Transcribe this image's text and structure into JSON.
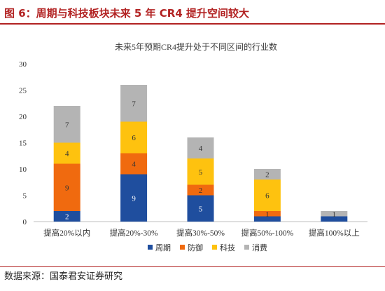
{
  "figure": {
    "title": "图 6：周期与科技板块未来 5 年 CR4 提升空间较大",
    "source": "数据来源：国泰君安证券研究"
  },
  "colors": {
    "accent": "#b22222",
    "series": [
      "#1f4e9e",
      "#f06a0f",
      "#fec20f",
      "#b4b4b4"
    ]
  },
  "chart_data": {
    "type": "bar",
    "stacked": true,
    "title": "未来5年预期CR4提升处于不同区间的行业数",
    "categories": [
      "提高20%以内",
      "提高20%-30%",
      "提高30%-50%",
      "提高50%-100%",
      "提高100%以上"
    ],
    "series": [
      {
        "name": "周期",
        "values": [
          2,
          9,
          5,
          1,
          1
        ]
      },
      {
        "name": "防御",
        "values": [
          9,
          4,
          2,
          1,
          0
        ]
      },
      {
        "name": "科技",
        "values": [
          4,
          6,
          5,
          6,
          0
        ]
      },
      {
        "name": "消费",
        "values": [
          7,
          7,
          4,
          2,
          1
        ]
      }
    ],
    "labels": [
      [
        "2",
        "9",
        "5",
        "",
        ""
      ],
      [
        "9",
        "4",
        "2",
        "1",
        ""
      ],
      [
        "4",
        "6",
        "5",
        "6",
        ""
      ],
      [
        "7",
        "7",
        "4",
        "2",
        "1"
      ]
    ],
    "label_colors": [
      "#ffffff",
      "#333333",
      "#333333",
      "#333333"
    ],
    "ylim": [
      0,
      30
    ],
    "yticks": [
      0,
      5,
      10,
      15,
      20,
      25,
      30
    ],
    "grid": false,
    "legend_position": "bottom"
  }
}
